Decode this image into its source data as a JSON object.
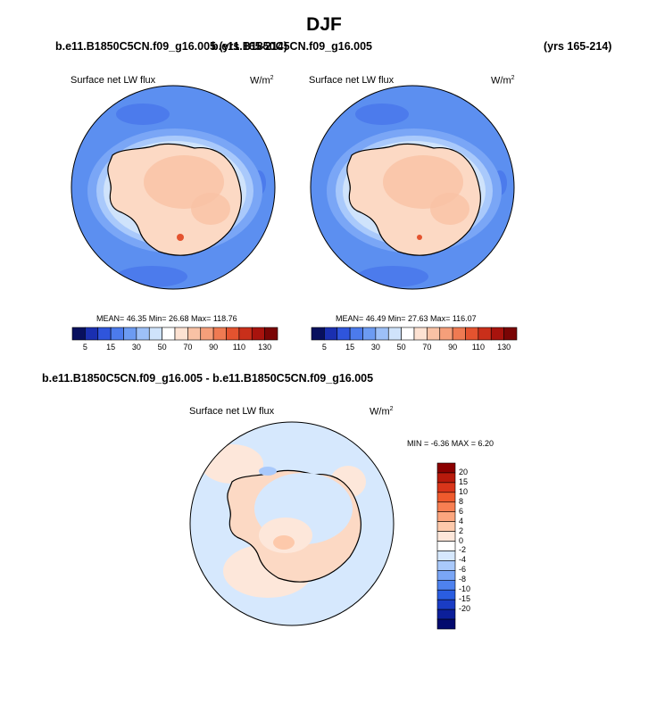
{
  "title": "DJF",
  "top_left_case": "b.e11.B1850C5CN.f09_g16.005 (yrs 165-214)",
  "top_right_case": "b.e11.B1850C5CN.f09_g16.005",
  "top_right_years": "(yrs 165-214)",
  "diff_case": "b.e11.B1850C5CN.f09_g16.005 - b.e11.B1850C5CN.f09_g16.005",
  "chart_data": [
    {
      "type": "heatmap",
      "projection": "south-polar-stereographic",
      "field": "Surface net LW flux",
      "units": "W/m",
      "units_exp": "2",
      "stats_text": "MEAN=  46.35  Min=  26.68  Max= 118.76",
      "mean": 46.35,
      "min": 26.68,
      "max": 118.76,
      "colorbar_ticks": [
        "5",
        "15",
        "30",
        "50",
        "70",
        "90",
        "110",
        "130"
      ],
      "colorbar_colors": [
        "#08105e",
        "#1a2fb0",
        "#2f55dc",
        "#4c7bec",
        "#6c9bf2",
        "#9dc0f7",
        "#cfe3fb",
        "#ffffff",
        "#fde2d2",
        "#f9c2a5",
        "#f59f7a",
        "#ef7a52",
        "#e4532f",
        "#c92f1a",
        "#a8130d",
        "#7a0505"
      ]
    },
    {
      "type": "heatmap",
      "projection": "south-polar-stereographic",
      "field": "Surface net LW flux",
      "units": "W/m",
      "units_exp": "2",
      "stats_text": "MEAN=  46.49  Min=  27.63  Max= 116.07",
      "mean": 46.49,
      "min": 27.63,
      "max": 116.07,
      "colorbar_ticks": [
        "5",
        "15",
        "30",
        "50",
        "70",
        "90",
        "110",
        "130"
      ]
    },
    {
      "type": "heatmap",
      "projection": "south-polar-stereographic",
      "field": "Surface net LW flux",
      "units": "W/m",
      "units_exp": "2",
      "stats_text": "MIN =  -6.36 MAX =   6.20",
      "min": -6.36,
      "max": 6.2,
      "colorbar_ticks": [
        "20",
        "15",
        "10",
        "8",
        "6",
        "4",
        "2",
        "0",
        "-2",
        "-4",
        "-6",
        "-8",
        "-10",
        "-15",
        "-20"
      ],
      "colorbar_colors": [
        "#8b0000",
        "#b81a0c",
        "#d9351a",
        "#ef5a2d",
        "#f87f52",
        "#fca67e",
        "#fdc9ab",
        "#fde7da",
        "#ffffff",
        "#d6e8fd",
        "#a9c9fb",
        "#7aa6f6",
        "#4e82ef",
        "#2a5de0",
        "#1a3cc4",
        "#0c1f9a",
        "#030a6e"
      ]
    }
  ]
}
